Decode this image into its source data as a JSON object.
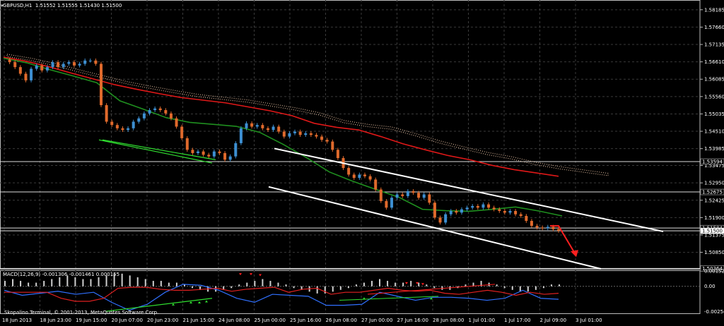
{
  "chart_header": {
    "marker": "▼",
    "symbol": "GBPUSD,H1",
    "ohlc": "1.51552 1.51555 1.51430 1.51500"
  },
  "macd_header": "MACD(12,26,9) -0.001306 -0.001461 0.000155",
  "copyright": "Skopalino Terminal, © 2001-2013, MetaQuotes Software Corp.",
  "price_axis": {
    "ticks": [
      "1.58185",
      "1.57660",
      "1.57135",
      "1.56610",
      "1.56085",
      "1.55560",
      "1.55035",
      "1.54510",
      "1.53985",
      "1.53475",
      "1.52950",
      "1.52425",
      "1.51900",
      "1.51375",
      "1.50850"
    ],
    "hlines": [
      {
        "label": "1.53594",
        "value": 1.53594
      },
      {
        "label": "1.52675",
        "value": 1.52675
      },
      {
        "label": "1.51584",
        "value": 1.51584
      },
      {
        "label": "1.51500",
        "value": 1.515
      },
      {
        "label": "1.50364",
        "value": 1.50364
      }
    ]
  },
  "macd_axis": {
    "ticks": [
      "0.001527",
      "0.00",
      "-0.002540"
    ]
  },
  "time_axis": {
    "ticks": [
      "18 Jun 2013",
      "18 Jun 23:00",
      "19 Jun 15:00",
      "20 Jun 07:00",
      "20 Jun 23:00",
      "21 Jun 15:00",
      "24 Jun 08:00",
      "25 Jun 00:00",
      "25 Jun 16:00",
      "26 Jun 08:00",
      "27 Jun 00:00",
      "27 Jun 16:00",
      "28 Jun 08:00",
      "1 Jul 01:00",
      "1 Jul 17:00",
      "2 Jul 09:00",
      "3 Jul 01:00"
    ]
  },
  "colors": {
    "bg": "#000000",
    "grid": "#3a3a3a",
    "bull": "#3d8fd1",
    "bear": "#e06a2c",
    "ma_red": "#e01818",
    "ma_green": "#1f8f1f",
    "cloud": "#f0c8a8",
    "channel": "#ffffff",
    "signal_green": "#30e030",
    "signal_red": "#ff2020"
  },
  "chart_data": {
    "type": "candlestick",
    "symbol": "GBPUSD",
    "timeframe": "H1",
    "ylim": [
      1.5035,
      1.5848
    ],
    "close_path": [
      1.5668,
      1.566,
      1.5645,
      1.5625,
      1.5605,
      1.564,
      1.565,
      1.5635,
      1.5645,
      1.566,
      1.5645,
      1.5655,
      1.566,
      1.565,
      1.5655,
      1.5665,
      1.5665,
      1.5655,
      1.553,
      1.548,
      1.547,
      1.546,
      1.5455,
      1.546,
      1.548,
      1.549,
      1.5505,
      1.5515,
      1.552,
      1.5515,
      1.5505,
      1.549,
      1.5465,
      1.543,
      1.5395,
      1.5385,
      1.539,
      1.538,
      1.5375,
      1.539,
      1.5385,
      1.5365,
      1.5375,
      1.5415,
      1.546,
      1.5475,
      1.5465,
      1.547,
      1.546,
      1.5455,
      1.5465,
      1.545,
      1.5435,
      1.5445,
      1.545,
      1.544,
      1.5445,
      1.544,
      1.5435,
      1.5425,
      1.542,
      1.5395,
      1.537,
      1.534,
      1.532,
      1.531,
      1.532,
      1.5315,
      1.5305,
      1.5275,
      1.524,
      1.522,
      1.525,
      1.526,
      1.5255,
      1.527,
      1.5265,
      1.525,
      1.526,
      1.5235,
      1.519,
      1.5175,
      1.52,
      1.521,
      1.5205,
      1.5215,
      1.522,
      1.5225,
      1.522,
      1.523,
      1.522,
      1.5215,
      1.521,
      1.5205,
      1.521,
      1.52,
      1.5195,
      1.518,
      1.5165,
      1.516,
      1.5158,
      1.5162,
      1.5155,
      1.515
    ],
    "moving_averages": [
      {
        "color": "red",
        "values": [
          1.5675,
          1.5663,
          1.5647,
          1.5628,
          1.561,
          1.5592,
          1.5578,
          1.5565,
          1.5553,
          1.5545,
          1.5537,
          1.5525,
          1.5513,
          1.5498,
          1.5475,
          1.5463,
          1.5455,
          1.5435,
          1.5413,
          1.5395,
          1.5378,
          1.5365,
          1.5348,
          1.5335,
          1.5325,
          1.5315
        ]
      },
      {
        "color": "green",
        "values": [
          1.5672,
          1.5658,
          1.5637,
          1.5618,
          1.5598,
          1.5543,
          1.5518,
          1.5492,
          1.5478,
          1.5472,
          1.5466,
          1.5448,
          1.5412,
          1.5372,
          1.5328,
          1.53,
          1.5275,
          1.5251,
          1.5215,
          1.5211,
          1.5209,
          1.5215,
          1.5222,
          1.521,
          1.5195
        ]
      }
    ],
    "channel_upper": [
      [
        1.5399,
        1.5148
      ]
    ],
    "channel_lower": [
      [
        1.5283,
        1.5035
      ]
    ],
    "support_lines_green": [
      [
        1.5425,
        1.5355
      ],
      [
        1.5425,
        1.5365
      ]
    ],
    "projection_arrow": {
      "from": 1.5165,
      "to": 1.5075
    },
    "macd": {
      "values": [
        0.0003,
        0.0004,
        0.0003,
        0.0002,
        0.0002,
        0.0003,
        0.0004,
        0.0005,
        0.0006,
        0.0005,
        0.0004,
        0.0004,
        0.0005,
        0.0006,
        0.0007,
        0.0007,
        0.0006,
        0.0005,
        0.0004,
        0.0003,
        0.0003,
        0.0002,
        0.0002,
        0.0001,
        -0.0001,
        -0.0002,
        -0.0003,
        -0.0003,
        -0.0002,
        -0.0001,
        0.0001,
        0.0002,
        0.0003,
        0.0004,
        0.0003,
        0.0002,
        0.0001,
        -0.0001,
        -0.0002,
        -0.0003,
        -0.0004,
        -0.0004,
        -0.0003,
        -0.0002,
        -0.0001,
        0.0001,
        0.0002,
        0.0003,
        0.0004,
        0.0003,
        0.0002,
        0.0002,
        0.0003,
        0.0002,
        0.0001,
        -0.0001,
        -0.0002,
        -0.0002,
        -0.0001,
        0.0001,
        0.0002,
        0.0003,
        0.0002,
        0.0001,
        -0.0001,
        -0.0002,
        -0.0003,
        -0.0003,
        -0.0002,
        -0.0001,
        0.0001,
        0.0001
      ],
      "main_line": [
        -0.0004,
        -0.0009,
        -0.0007,
        -0.0005,
        -0.0008,
        -0.0006,
        -0.0016,
        -0.0024,
        -0.0018,
        -0.0006,
        0.0002,
        0.0001,
        -0.0004,
        -0.0012,
        -0.0016,
        -0.0008,
        -0.0009,
        -0.001,
        -0.0019,
        -0.0019,
        -0.0018,
        -0.0006,
        -0.001,
        -0.0014,
        -0.0011,
        -0.0011,
        -0.0012,
        -0.0014,
        -0.0012,
        -0.0004,
        -0.0012,
        -0.0013
      ],
      "signal_line": [
        -0.0006,
        -0.0006,
        -0.0006,
        -0.0006,
        -0.0012,
        -0.0015,
        -0.0015,
        -0.0012,
        -0.0002,
        -0.0001,
        -0.0001,
        -0.0003,
        -0.0004,
        -0.0004,
        -0.0003,
        -0.0002,
        -0.0005,
        -0.0003,
        -0.0002,
        -0.0001,
        -0.0006,
        -0.0003,
        -0.0002,
        -0.0008,
        -0.0006,
        -0.0006,
        -0.0004,
        -0.0002,
        -0.0004,
        -0.0005,
        -0.0004,
        -0.0007,
        -0.0008,
        -0.0006,
        -0.0004,
        -0.0006,
        -0.0009,
        -0.0006,
        -0.0008,
        -0.0007
      ]
    }
  }
}
